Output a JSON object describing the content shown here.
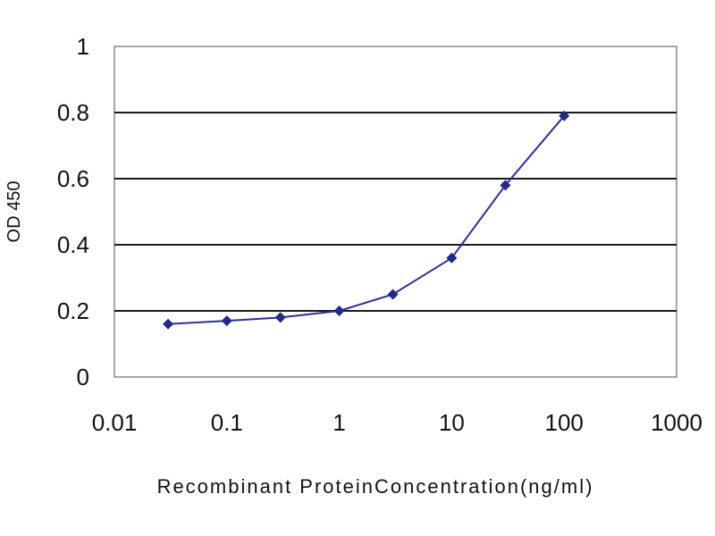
{
  "chart_data": {
    "type": "line",
    "title": "",
    "xlabel": "Recombinant ProteinConcentration(ng/ml)",
    "ylabel": "OD 450",
    "x_scale": "log",
    "xlim": [
      0.01,
      1000
    ],
    "ylim": [
      0,
      1
    ],
    "x_ticks": [
      0.01,
      0.1,
      1,
      10,
      100,
      1000
    ],
    "x_tick_labels": [
      "0.01",
      "0.1",
      "1",
      "10",
      "100",
      "1000"
    ],
    "y_ticks": [
      0,
      0.2,
      0.4,
      0.6,
      0.8,
      1
    ],
    "y_tick_labels": [
      "0",
      "0.2",
      "0.4",
      "0.6",
      "0.8",
      "1"
    ],
    "grid": "horizontal",
    "legend": "none",
    "series": [
      {
        "x": [
          0.03,
          0.1,
          0.3,
          1,
          3,
          10,
          30,
          100
        ],
        "y": [
          0.16,
          0.17,
          0.18,
          0.2,
          0.25,
          0.36,
          0.58,
          0.79
        ]
      }
    ],
    "colors": {
      "line": "#2b2f9e",
      "marker": "#1f2a8a",
      "grid": "#1a1a1a",
      "plot_background": "#ffffff"
    }
  }
}
